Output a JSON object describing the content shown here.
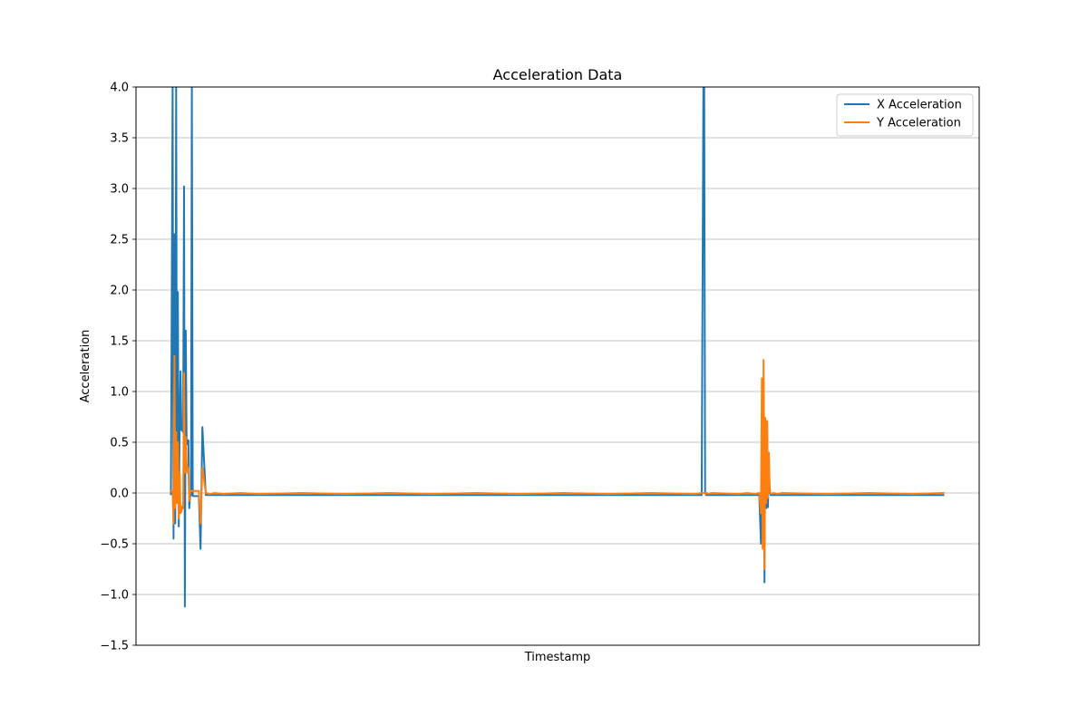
{
  "chart_data": {
    "type": "line",
    "title": "Acceleration Data",
    "xlabel": "Timestamp",
    "ylabel": "Acceleration",
    "ylim": [
      -1.5,
      4.0
    ],
    "yticks": [
      "−1.5",
      "−1.0",
      "−0.5",
      "0.0",
      "0.5",
      "1.0",
      "1.5",
      "2.0",
      "2.5",
      "3.0",
      "3.5",
      "4.0"
    ],
    "grid": "horizontal",
    "legend_position": "top-right",
    "x": [
      0,
      2,
      3,
      4,
      5,
      6,
      7,
      8,
      9,
      10,
      11,
      12,
      13,
      14,
      15,
      16,
      17,
      18,
      19,
      20,
      21,
      22,
      23,
      24,
      25,
      26,
      28,
      30,
      32,
      34,
      36,
      40,
      45,
      50,
      60,
      80,
      100,
      150,
      200,
      250,
      300,
      350,
      400,
      450,
      500,
      550,
      600,
      608,
      610,
      611,
      612,
      613,
      614,
      616,
      620,
      650,
      660,
      670,
      674,
      676,
      677,
      678,
      679,
      680,
      681,
      682,
      683,
      684,
      685,
      686,
      687,
      688,
      690,
      695,
      700,
      750,
      800,
      850,
      886
    ],
    "series": [
      {
        "name": "X Acceleration",
        "color": "#1f77b4",
        "values": [
          -0.02,
          4.0,
          -0.45,
          2.55,
          -0.3,
          4.0,
          0.05,
          1.98,
          -0.33,
          0.65,
          1.2,
          0.62,
          0.62,
          0.6,
          3.02,
          -1.12,
          1.6,
          0.5,
          0.48,
          0.52,
          -0.15,
          -0.03,
          -0.02,
          4.0,
          -0.03,
          -0.03,
          -0.03,
          -0.03,
          -0.03,
          -0.55,
          0.65,
          -0.02,
          -0.02,
          -0.02,
          -0.02,
          -0.02,
          -0.02,
          -0.02,
          -0.02,
          -0.02,
          -0.02,
          -0.02,
          -0.02,
          -0.02,
          -0.02,
          -0.02,
          -0.02,
          -0.02,
          4.0,
          4.0,
          0.0,
          -0.02,
          -0.02,
          -0.02,
          -0.02,
          -0.02,
          -0.02,
          -0.02,
          -0.02,
          -0.5,
          0.4,
          -0.2,
          0.97,
          -0.88,
          0.6,
          -0.15,
          0.7,
          -0.14,
          0.3,
          0.05,
          -0.02,
          -0.02,
          -0.02,
          -0.02,
          -0.02,
          -0.02,
          -0.02,
          -0.02,
          -0.02
        ]
      },
      {
        "name": "Y Acceleration",
        "color": "#ff7f0e",
        "values": [
          0.03,
          0.0,
          -0.3,
          1.35,
          -0.15,
          0.6,
          -0.1,
          0.5,
          -0.25,
          0.2,
          -0.2,
          -0.18,
          -0.13,
          -0.15,
          1.18,
          0.2,
          0.55,
          0.3,
          0.2,
          0.25,
          -0.08,
          0.02,
          0.02,
          0.02,
          0.02,
          0.02,
          0.02,
          0.02,
          0.02,
          -0.3,
          0.25,
          0.0,
          -0.01,
          0.0,
          -0.01,
          0.0,
          -0.01,
          0.0,
          -0.01,
          0.0,
          -0.01,
          0.0,
          -0.01,
          0.0,
          -0.01,
          0.0,
          -0.01,
          0.0,
          0.0,
          0.0,
          0.0,
          -0.01,
          0.0,
          -0.01,
          0.0,
          -0.01,
          0.0,
          -0.01,
          0.0,
          -0.2,
          1.13,
          -0.55,
          1.31,
          -0.75,
          0.74,
          -0.1,
          0.71,
          -0.05,
          0.4,
          0.02,
          0.0,
          -0.01,
          0.0,
          -0.01,
          0.0,
          -0.01,
          0.0,
          -0.01,
          0.0
        ]
      }
    ]
  }
}
